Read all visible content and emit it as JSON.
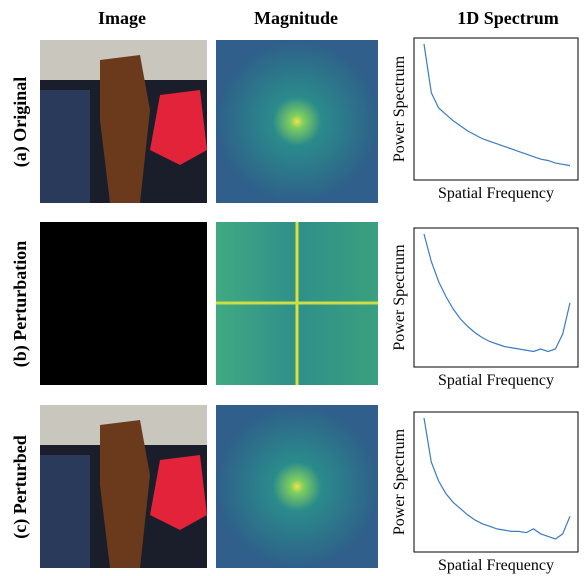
{
  "headers": [
    "Image",
    "Magnitude",
    "1D Spectrum"
  ],
  "row_labels": [
    "(a) Original",
    "(b) Perturbation",
    "(c) Perturbed"
  ],
  "chart_data": [
    {
      "type": "line",
      "xlabel": "Spatial Frequency",
      "ylabel": "Power Spectrum",
      "color": "#3b7dbf",
      "x": [
        0,
        1,
        2,
        3,
        4,
        5,
        6,
        7,
        8,
        9,
        10,
        11,
        12,
        13,
        14,
        15,
        16,
        17,
        18,
        19,
        20
      ],
      "xlim": [
        0,
        20
      ],
      "ylim": [
        0,
        100
      ],
      "series": [
        {
          "values": [
            100,
            62,
            50,
            45,
            40,
            36,
            32,
            29,
            26,
            24,
            22,
            20,
            18,
            16,
            14,
            12,
            10,
            9,
            7,
            6,
            5
          ]
        }
      ]
    },
    {
      "type": "line",
      "xlabel": "Spatial Frequency",
      "ylabel": "Power Spectrum",
      "color": "#3b7dbf",
      "x": [
        0,
        1,
        2,
        3,
        4,
        5,
        6,
        7,
        8,
        9,
        10,
        11,
        12,
        13,
        14,
        15,
        16,
        17,
        18,
        19,
        20
      ],
      "xlim": [
        0,
        20
      ],
      "ylim": [
        0,
        100
      ],
      "series": [
        {
          "values": [
            100,
            78,
            62,
            50,
            40,
            32,
            26,
            21,
            17,
            14,
            12,
            10,
            9,
            8,
            7,
            6,
            8,
            6,
            8,
            20,
            45
          ]
        }
      ]
    },
    {
      "type": "line",
      "xlabel": "Spatial Frequency",
      "ylabel": "Power Spectrum",
      "color": "#3b7dbf",
      "x": [
        0,
        1,
        2,
        3,
        4,
        5,
        6,
        7,
        8,
        9,
        10,
        11,
        12,
        13,
        14,
        15,
        16,
        17,
        18,
        19,
        20
      ],
      "xlim": [
        0,
        20
      ],
      "ylim": [
        0,
        100
      ],
      "series": [
        {
          "values": [
            100,
            65,
            50,
            40,
            33,
            28,
            23,
            19,
            16,
            14,
            12,
            11,
            10,
            10,
            9,
            12,
            8,
            6,
            4,
            8,
            22
          ]
        }
      ]
    }
  ]
}
